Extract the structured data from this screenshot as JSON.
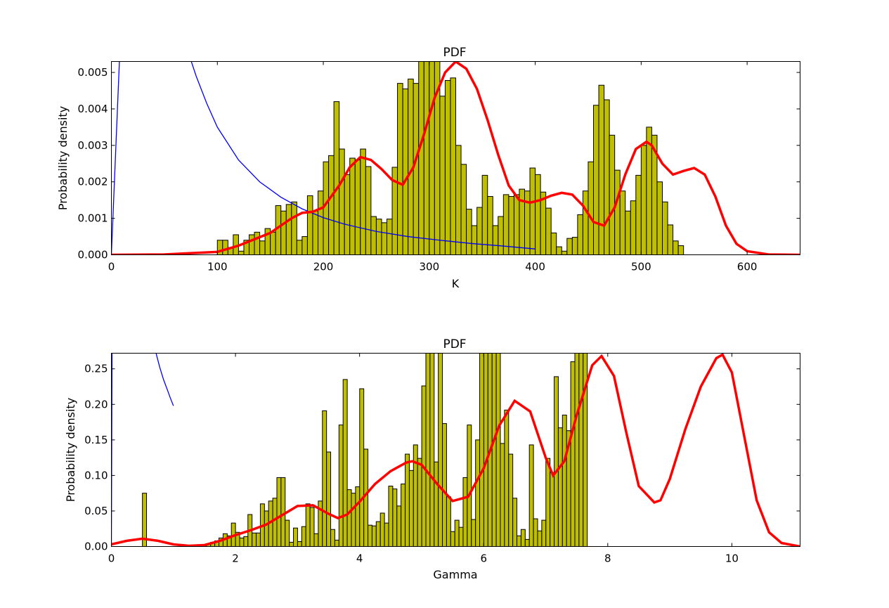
{
  "chart_data": [
    {
      "type": "bar",
      "title": "PDF",
      "xlabel": "K",
      "ylabel": "Probability density",
      "xlim": [
        0,
        650
      ],
      "ylim": [
        0,
        0.0053
      ],
      "xticks": [
        0,
        100,
        200,
        300,
        400,
        500,
        600
      ],
      "xtick_labels": [
        "0",
        "100",
        "200",
        "300",
        "400",
        "500",
        "600"
      ],
      "yticks": [
        0,
        0.001,
        0.002,
        0.003,
        0.004,
        0.005
      ],
      "ytick_labels": [
        "0.000",
        "0.001",
        "0.002",
        "0.003",
        "0.004",
        "0.005"
      ],
      "grid": false,
      "colors": {
        "bars": "#bfbf00",
        "kde": "#ff0000",
        "prior": "#0000ff"
      },
      "histogram": {
        "bin_start": 100,
        "bin_width": 5,
        "values": [
          0.0004,
          0.0004,
          0.0002,
          0.00055,
          0.0001,
          0.0004,
          0.00055,
          0.00062,
          0.00038,
          0.00072,
          0.00062,
          0.00135,
          0.0012,
          0.00138,
          0.00145,
          0.0004,
          0.0005,
          0.00162,
          0.0012,
          0.00175,
          0.00255,
          0.00272,
          0.0042,
          0.0029,
          0.0022,
          0.00265,
          0.0026,
          0.0029,
          0.00242,
          0.00105,
          0.00098,
          0.00088,
          0.00098,
          0.0024,
          0.0047,
          0.00455,
          0.00482,
          0.0047,
          0.0053,
          0.0053,
          0.0053,
          0.0053,
          0.00435,
          0.00478,
          0.00485,
          0.003,
          0.00248,
          0.00125,
          0.0008,
          0.0013,
          0.00218,
          0.0016,
          0.0008,
          0.00105,
          0.00165,
          0.0016,
          0.00165,
          0.0018,
          0.00175,
          0.00238,
          0.0022,
          0.00172,
          0.00128,
          0.0006,
          0.00022,
          0.0001,
          0.00045,
          0.00048,
          0.0011,
          0.00175,
          0.00255,
          0.0041,
          0.00465,
          0.00425,
          0.00328,
          0.00232,
          0.00175,
          0.0012,
          0.00148,
          0.00218,
          0.003,
          0.0035,
          0.00328,
          0.002,
          0.00145,
          0.00082,
          0.00038,
          0.00025
        ]
      },
      "kde": {
        "x": [
          0,
          50,
          100,
          120,
          150,
          170,
          180,
          190,
          200,
          215,
          225,
          235,
          245,
          255,
          265,
          275,
          285,
          295,
          305,
          315,
          325,
          335,
          345,
          355,
          365,
          375,
          385,
          395,
          405,
          415,
          425,
          435,
          445,
          455,
          465,
          475,
          485,
          495,
          505,
          510,
          520,
          530,
          540,
          550,
          560,
          570,
          580,
          590,
          600,
          620,
          650
        ],
        "y": [
          0,
          1e-05,
          8e-05,
          0.00025,
          0.0006,
          0.001,
          0.00115,
          0.00118,
          0.0013,
          0.0019,
          0.0024,
          0.00268,
          0.0026,
          0.00235,
          0.00205,
          0.00192,
          0.0024,
          0.0033,
          0.0043,
          0.005,
          0.0053,
          0.0051,
          0.00455,
          0.0037,
          0.00275,
          0.0019,
          0.0015,
          0.00143,
          0.0015,
          0.00162,
          0.0017,
          0.00165,
          0.00135,
          0.0009,
          0.0008,
          0.0013,
          0.0022,
          0.0029,
          0.0031,
          0.003,
          0.0025,
          0.0022,
          0.0023,
          0.00238,
          0.0022,
          0.0016,
          0.0008,
          0.0003,
          0.0001,
          1e-05,
          0
        ]
      },
      "prior": {
        "segments": [
          {
            "x": [
              0,
              2,
              4,
              6,
              8
            ],
            "y": [
              0,
              0.0014,
              0.0028,
              0.0042,
              0.0056
            ]
          },
          {
            "x": [
              72,
              80,
              90,
              100,
              120,
              140,
              160,
              180,
              200,
              220,
              250,
              280,
              310,
              340,
              370,
              400
            ],
            "y": [
              0.0056,
              0.0049,
              0.00415,
              0.0035,
              0.0026,
              0.002,
              0.00158,
              0.00126,
              0.00102,
              0.00084,
              0.00064,
              0.0005,
              0.0004,
              0.00031,
              0.00024,
              0.00016
            ]
          }
        ]
      }
    },
    {
      "type": "bar",
      "title": "PDF",
      "xlabel": "Gamma",
      "ylabel": "Probability density",
      "xlim": [
        0,
        11.1
      ],
      "ylim": [
        0,
        0.272
      ],
      "xticks": [
        0,
        2,
        4,
        6,
        8,
        10
      ],
      "xtick_labels": [
        "0",
        "2",
        "4",
        "6",
        "8",
        "10"
      ],
      "yticks": [
        0,
        0.05,
        0.1,
        0.15,
        0.2,
        0.25
      ],
      "ytick_labels": [
        "0.00",
        "0.05",
        "0.10",
        "0.15",
        "0.20",
        "0.25"
      ],
      "grid": false,
      "colors": {
        "bars": "#bfbf00",
        "kde": "#ff0000",
        "prior": "#0000ff"
      },
      "histogram": {
        "bin_start": 1.4,
        "bin_width": 0.0667,
        "values": [
          0.001,
          0.003,
          0.004,
          0.006,
          0.008,
          0.012,
          0.018,
          0.015,
          0.033,
          0.02,
          0.012,
          0.014,
          0.045,
          0.019,
          0.019,
          0.06,
          0.05,
          0.064,
          0.068,
          0.097,
          0.097,
          0.037,
          0.006,
          0.026,
          0.007,
          0.028,
          0.06,
          0.055,
          0.018,
          0.064,
          0.191,
          0.133,
          0.024,
          0.009,
          0.171,
          0.235,
          0.08,
          0.075,
          0.084,
          0.222,
          0.137,
          0.03,
          0.029,
          0.035,
          0.047,
          0.033,
          0.085,
          0.081,
          0.057,
          0.088,
          0.13,
          0.107,
          0.143,
          0.124,
          0.226,
          0.272,
          0.272,
          0.119,
          0.272,
          0.173,
          0.07,
          0.021,
          0.037,
          0.027,
          0.097,
          0.171,
          0.038,
          0.15,
          0.272,
          0.272,
          0.272,
          0.272,
          0.272,
          0.145,
          0.192,
          0.13,
          0.068,
          0.015,
          0.024,
          0.01,
          0.143,
          0.039,
          0.022,
          0.037,
          0.124,
          0.104,
          0.239,
          0.167,
          0.185,
          0.163,
          0.26,
          0.272,
          0.272,
          0.272
        ],
        "extra_bars": [
          {
            "x": 0.5,
            "width": 0.0667,
            "value": 0.075
          }
        ]
      },
      "kde": {
        "x": [
          0,
          0.25,
          0.5,
          0.75,
          1.0,
          1.25,
          1.5,
          1.75,
          2.0,
          2.25,
          2.5,
          2.75,
          3.0,
          3.25,
          3.5,
          3.65,
          3.8,
          4.0,
          4.25,
          4.5,
          4.75,
          4.85,
          5.0,
          5.25,
          5.5,
          5.75,
          6.0,
          6.25,
          6.5,
          6.75,
          7.0,
          7.12,
          7.3,
          7.5,
          7.75,
          7.9,
          8.1,
          8.3,
          8.5,
          8.75,
          8.85,
          9.0,
          9.25,
          9.5,
          9.75,
          9.85,
          10.0,
          10.2,
          10.4,
          10.6,
          10.8,
          11.1
        ],
        "y": [
          0.003,
          0.008,
          0.011,
          0.008,
          0.003,
          0.001,
          0.002,
          0.008,
          0.016,
          0.023,
          0.031,
          0.044,
          0.057,
          0.058,
          0.046,
          0.04,
          0.045,
          0.063,
          0.088,
          0.106,
          0.118,
          0.12,
          0.115,
          0.088,
          0.064,
          0.07,
          0.11,
          0.17,
          0.205,
          0.19,
          0.125,
          0.1,
          0.12,
          0.185,
          0.255,
          0.268,
          0.24,
          0.16,
          0.085,
          0.062,
          0.065,
          0.095,
          0.165,
          0.225,
          0.265,
          0.27,
          0.245,
          0.155,
          0.065,
          0.02,
          0.005,
          0
        ]
      },
      "prior": {
        "segments": [
          {
            "x": [
              0,
              0.004,
              0.008,
              0.012
            ],
            "y": [
              0,
              0.1,
              0.2,
              0.3
            ]
          },
          {
            "x": [
              0.72,
              0.78,
              0.84,
              0.9,
              0.95,
              1.0
            ],
            "y": [
              0.272,
              0.252,
              0.235,
              0.221,
              0.209,
              0.198
            ]
          }
        ]
      }
    }
  ]
}
